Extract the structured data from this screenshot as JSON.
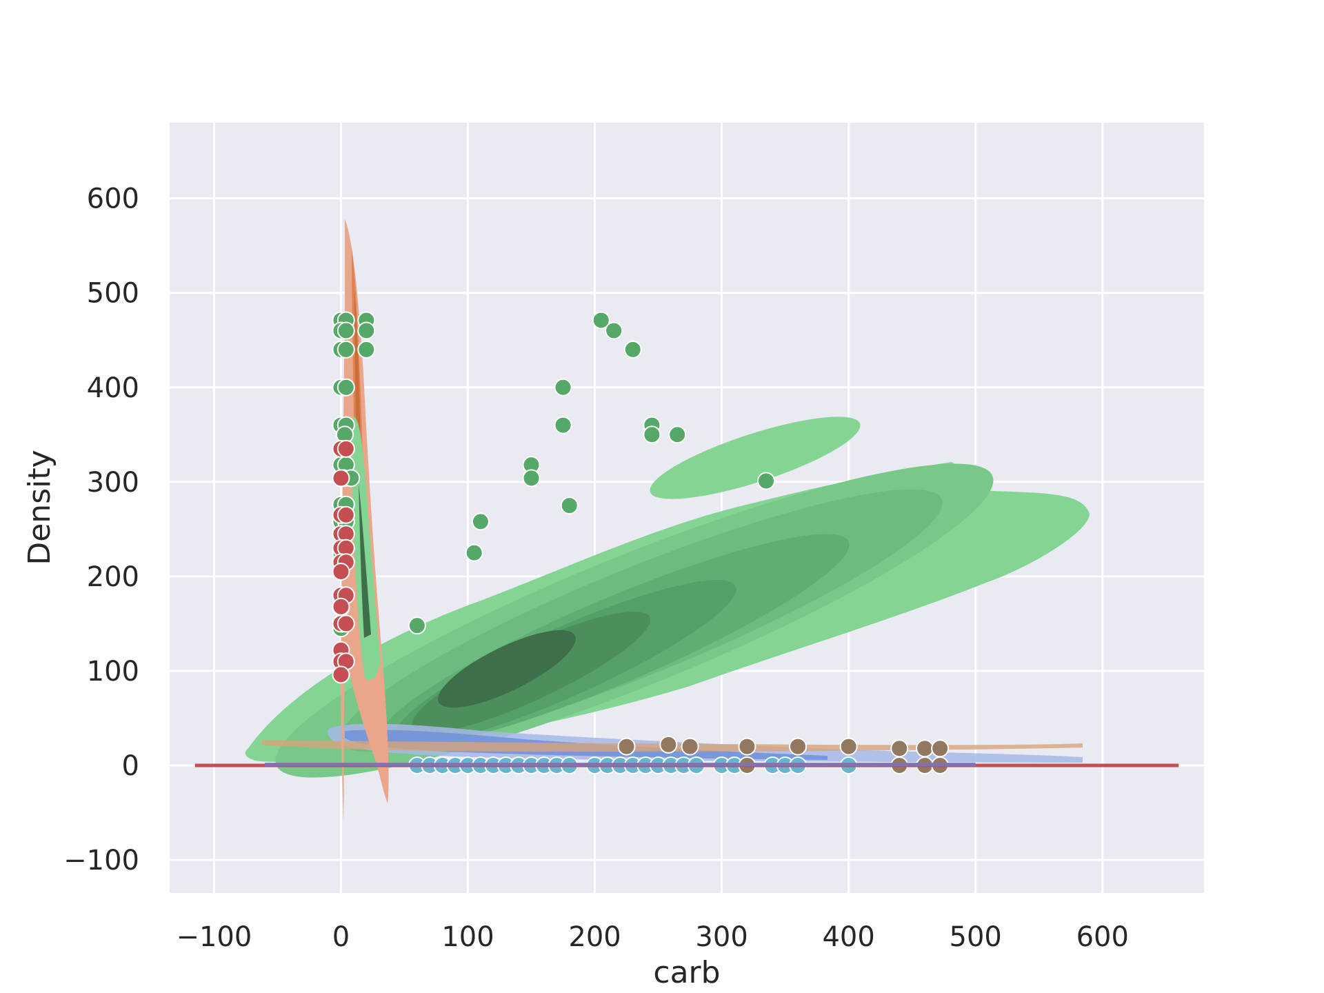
{
  "chart_data": {
    "type": "scatter",
    "title": "",
    "xlabel": "carb",
    "ylabel": "Density",
    "xlim": [
      -135,
      680
    ],
    "ylim": [
      -135,
      680
    ],
    "x_ticks": [
      -100,
      0,
      100,
      200,
      300,
      400,
      500,
      600
    ],
    "y_ticks": [
      -100,
      0,
      100,
      200,
      300,
      400,
      500,
      600
    ],
    "x_tick_labels": [
      "−100",
      "0",
      "100",
      "200",
      "300",
      "400",
      "500",
      "600"
    ],
    "y_tick_labels": [
      "−100",
      "0",
      "100",
      "200",
      "300",
      "400",
      "500",
      "600"
    ],
    "grid": true,
    "legend": "none",
    "colors": {
      "background": "#eaeaf2",
      "grid": "#ffffff",
      "green_kde_light": "#84d494",
      "green_kde_dark": "#3f6e4b",
      "green_points": "#55a868",
      "red_points": "#c44e52",
      "orange_kde": "#dd8452",
      "blue_kde": "#4c72b0",
      "brown_points": "#937860",
      "cyan_points": "#64b5cd",
      "purple_line": "#8172b3"
    },
    "series": [
      {
        "type": "scatter",
        "color": "#55a868",
        "points": [
          [
            205,
            471
          ],
          [
            215,
            460
          ],
          [
            230,
            440
          ],
          [
            175,
            400
          ],
          [
            175,
            360
          ],
          [
            245,
            360
          ],
          [
            245,
            350
          ],
          [
            265,
            350
          ],
          [
            150,
            318
          ],
          [
            150,
            304
          ],
          [
            335,
            301
          ],
          [
            180,
            275
          ],
          [
            110,
            258
          ],
          [
            105,
            225
          ],
          [
            60,
            148
          ],
          [
            0,
            471
          ],
          [
            4,
            471
          ],
          [
            20,
            471
          ],
          [
            0,
            460
          ],
          [
            4,
            460
          ],
          [
            20,
            460
          ],
          [
            0,
            440
          ],
          [
            4,
            440
          ],
          [
            20,
            440
          ],
          [
            0,
            400
          ],
          [
            4,
            400
          ],
          [
            0,
            360
          ],
          [
            4,
            360
          ],
          [
            3,
            350
          ],
          [
            0,
            318
          ],
          [
            4,
            318
          ],
          [
            2,
            304
          ],
          [
            8,
            304
          ],
          [
            0,
            276
          ],
          [
            4,
            276
          ],
          [
            0,
            258
          ],
          [
            4,
            258
          ],
          [
            0,
            225
          ],
          [
            0,
            167
          ],
          [
            0,
            145
          ]
        ]
      },
      {
        "type": "scatter",
        "color": "#c44e52",
        "points": [
          [
            0,
            335
          ],
          [
            4,
            335
          ],
          [
            0,
            304
          ],
          [
            0,
            265
          ],
          [
            4,
            265
          ],
          [
            0,
            245
          ],
          [
            4,
            245
          ],
          [
            0,
            230
          ],
          [
            4,
            230
          ],
          [
            0,
            215
          ],
          [
            4,
            215
          ],
          [
            0,
            205
          ],
          [
            0,
            180
          ],
          [
            4,
            180
          ],
          [
            0,
            168
          ],
          [
            0,
            150
          ],
          [
            4,
            150
          ],
          [
            0,
            122
          ],
          [
            0,
            110
          ],
          [
            4,
            110
          ],
          [
            0,
            96
          ]
        ]
      },
      {
        "type": "scatter",
        "color": "#64b5cd",
        "points": [
          [
            60,
            0
          ],
          [
            70,
            0
          ],
          [
            80,
            0
          ],
          [
            90,
            0
          ],
          [
            100,
            0
          ],
          [
            110,
            0
          ],
          [
            120,
            0
          ],
          [
            130,
            0
          ],
          [
            140,
            0
          ],
          [
            150,
            0
          ],
          [
            160,
            0
          ],
          [
            170,
            0
          ],
          [
            180,
            0
          ],
          [
            200,
            0
          ],
          [
            210,
            0
          ],
          [
            220,
            0
          ],
          [
            230,
            0
          ],
          [
            240,
            0
          ],
          [
            250,
            0
          ],
          [
            260,
            0
          ],
          [
            270,
            0
          ],
          [
            280,
            0
          ],
          [
            300,
            0
          ],
          [
            310,
            0
          ],
          [
            320,
            0
          ],
          [
            340,
            0
          ],
          [
            350,
            0
          ],
          [
            360,
            0
          ],
          [
            400,
            0
          ]
        ]
      },
      {
        "type": "scatter",
        "color": "#937860",
        "points": [
          [
            225,
            20
          ],
          [
            258,
            22
          ],
          [
            275,
            20
          ],
          [
            320,
            20
          ],
          [
            360,
            20
          ],
          [
            400,
            20
          ],
          [
            440,
            18
          ],
          [
            460,
            18
          ],
          [
            472,
            18
          ],
          [
            320,
            0
          ],
          [
            440,
            0
          ],
          [
            460,
            0
          ],
          [
            472,
            0
          ]
        ]
      },
      {
        "type": "line",
        "color": "#c44e52",
        "x": [
          -115,
          660
        ],
        "y": [
          0,
          0
        ]
      },
      {
        "type": "line",
        "color": "#8172b3",
        "x": [
          -60,
          500
        ],
        "y": [
          1,
          1
        ]
      }
    ]
  }
}
